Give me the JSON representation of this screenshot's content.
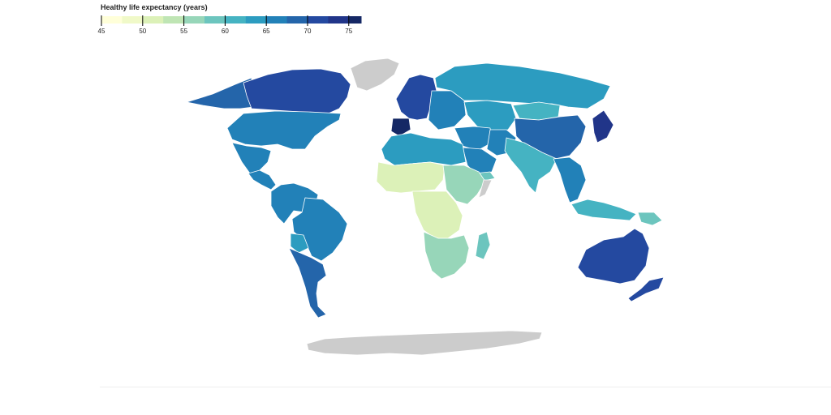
{
  "legend": {
    "title": "Healthy life expectancy (years)",
    "ticks": [
      "45",
      "50",
      "55",
      "60",
      "65",
      "70",
      "75"
    ],
    "tick_values": [
      45,
      50,
      55,
      60,
      65,
      70,
      75
    ],
    "min": 45,
    "max": 76.5,
    "scale": [
      {
        "from": 45,
        "to": 47.5,
        "color": "#ffffd9"
      },
      {
        "from": 47.5,
        "to": 50,
        "color": "#f0f9c8"
      },
      {
        "from": 50,
        "to": 52.5,
        "color": "#dcf1b8"
      },
      {
        "from": 52.5,
        "to": 55,
        "color": "#bfe5b4"
      },
      {
        "from": 55,
        "to": 57.5,
        "color": "#97d6b9"
      },
      {
        "from": 57.5,
        "to": 60,
        "color": "#6cc5be"
      },
      {
        "from": 60,
        "to": 62.5,
        "color": "#45b3c2"
      },
      {
        "from": 62.5,
        "to": 65,
        "color": "#2c9cc0"
      },
      {
        "from": 65,
        "to": 67.5,
        "color": "#2281b8"
      },
      {
        "from": 67.5,
        "to": 70,
        "color": "#2465aa"
      },
      {
        "from": 70,
        "to": 72.5,
        "color": "#2449a0"
      },
      {
        "from": 72.5,
        "to": 75,
        "color": "#213589"
      },
      {
        "from": 75,
        "to": 76.5,
        "color": "#152865"
      }
    ]
  },
  "colors": {
    "no_data": "#cccccc",
    "border": "#ffffff"
  },
  "regions": [
    {
      "id": "greenland",
      "value": null
    },
    {
      "id": "antarctica",
      "value": null
    },
    {
      "id": "canada",
      "value": 72
    },
    {
      "id": "alaska",
      "value": 68
    },
    {
      "id": "usa",
      "value": 67
    },
    {
      "id": "mexico",
      "value": 67
    },
    {
      "id": "central-america",
      "value": 66
    },
    {
      "id": "south-america-north",
      "value": 67
    },
    {
      "id": "brazil",
      "value": 66
    },
    {
      "id": "bolivia",
      "value": 63
    },
    {
      "id": "south-america-south",
      "value": 69
    },
    {
      "id": "western-europe",
      "value": 72
    },
    {
      "id": "iberia",
      "value": 75
    },
    {
      "id": "eastern-europe",
      "value": 65
    },
    {
      "id": "russia",
      "value": 64
    },
    {
      "id": "kazakhstan-central-asia",
      "value": 64
    },
    {
      "id": "middle-east",
      "value": 66
    },
    {
      "id": "iran",
      "value": 66
    },
    {
      "id": "arabia",
      "value": 66
    },
    {
      "id": "yemen",
      "value": 58
    },
    {
      "id": "north-africa",
      "value": 64
    },
    {
      "id": "sahel",
      "value": 50
    },
    {
      "id": "horn-of-africa",
      "value": 55
    },
    {
      "id": "somalia",
      "value": null
    },
    {
      "id": "central-africa",
      "value": 52
    },
    {
      "id": "southern-africa",
      "value": 56
    },
    {
      "id": "madagascar",
      "value": 58
    },
    {
      "id": "south-asia",
      "value": 60
    },
    {
      "id": "china",
      "value": 69
    },
    {
      "id": "mongolia",
      "value": 62
    },
    {
      "id": "japan",
      "value": 74
    },
    {
      "id": "southeast-asia",
      "value": 66
    },
    {
      "id": "indonesia",
      "value": 62
    },
    {
      "id": "papua-new-guinea",
      "value": 58
    },
    {
      "id": "australia",
      "value": 72
    },
    {
      "id": "new-zealand",
      "value": 72
    }
  ]
}
